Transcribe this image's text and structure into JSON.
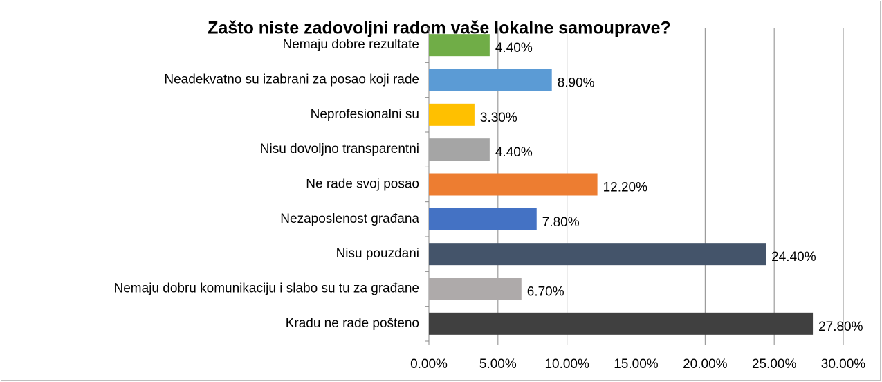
{
  "chart_data": {
    "type": "bar",
    "orientation": "horizontal",
    "title": "Zašto niste zadovoljni radom vaše lokalne samouprave?",
    "categories": [
      "Nemaju dobre rezultate",
      "Neadekvatno su izabrani za posao koji rade",
      "Neprofesionalni su",
      "Nisu dovoljno transparentni",
      "Ne rade svoj posao",
      "Nezaposlenost građana",
      "Nisu pouzdani",
      "Nemaju dobru komunikaciju i slabo su tu za građane",
      "Kradu ne rade pošteno"
    ],
    "values": [
      4.4,
      8.9,
      3.3,
      4.4,
      12.2,
      7.8,
      24.4,
      6.7,
      27.8
    ],
    "value_labels": [
      "4.40%",
      "8.90%",
      "3.30%",
      "4.40%",
      "12.20%",
      "7.80%",
      "24.40%",
      "6.70%",
      "27.80%"
    ],
    "colors": [
      "#70ad47",
      "#5b9bd5",
      "#ffc000",
      "#a5a5a5",
      "#ed7d31",
      "#4472c4",
      "#44546a",
      "#aeaaaa",
      "#404040"
    ],
    "xlim": [
      0,
      30
    ],
    "xticks": [
      {
        "value": 0,
        "label": "0.00%"
      },
      {
        "value": 5,
        "label": "5.00%"
      },
      {
        "value": 10,
        "label": "10.00%"
      },
      {
        "value": 15,
        "label": "15.00%"
      },
      {
        "value": 20,
        "label": "20.00%"
      },
      {
        "value": 25,
        "label": "25.00%"
      },
      {
        "value": 30,
        "label": "30.00%"
      }
    ],
    "grid": true
  }
}
